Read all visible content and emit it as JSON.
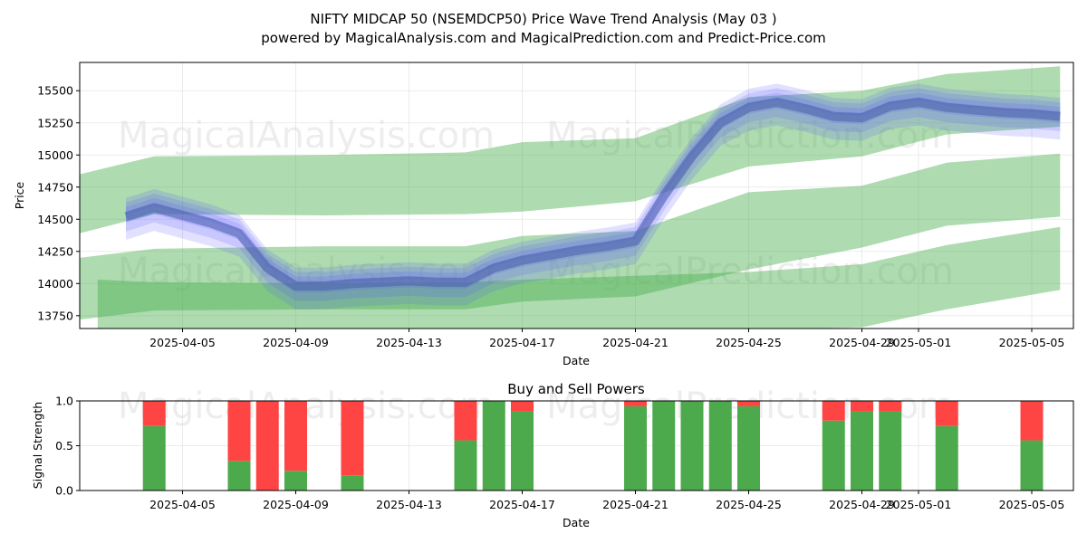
{
  "title_line1": "NIFTY MIDCAP 50 (NSEMDCP50) Price Wave Trend Analysis (May 03 )",
  "title_line2": "powered by MagicalAnalysis.com and MagicalPrediction.com and Predict-Price.com",
  "watermarks": [
    "MagicalAnalysis.com",
    "MagicalPrediction.com"
  ],
  "colors": {
    "band_green": "#4caf50",
    "wave_blue": "#5a5aff",
    "buy_green": "#4caa4c",
    "sell_red": "#ff4444"
  },
  "chart_data": [
    {
      "type": "area",
      "title": "",
      "xlabel": "Date",
      "ylabel": "Price",
      "ylim": [
        13650,
        15720
      ],
      "yticks": [
        13750,
        14000,
        14250,
        14500,
        14750,
        15000,
        15250,
        15500
      ],
      "xticks": [
        "2025-04-05",
        "2025-04-09",
        "2025-04-13",
        "2025-04-17",
        "2025-04-21",
        "2025-04-25",
        "2025-04-29",
        "2025-05-01",
        "2025-05-05"
      ],
      "grid": true,
      "green_bands": [
        {
          "x": [
            "2025-04-01",
            "2025-04-04",
            "2025-04-10",
            "2025-04-15",
            "2025-04-17",
            "2025-04-21",
            "2025-04-25",
            "2025-04-29",
            "2025-05-02",
            "2025-05-06"
          ],
          "upper": [
            14830,
            14990,
            15000,
            15020,
            15100,
            15130,
            15450,
            15500,
            15630,
            15690
          ],
          "lower": [
            14370,
            14540,
            14530,
            14540,
            14560,
            14640,
            14910,
            14990,
            15160,
            15220
          ]
        },
        {
          "x": [
            "2025-04-01",
            "2025-04-04",
            "2025-04-10",
            "2025-04-15",
            "2025-04-17",
            "2025-04-21",
            "2025-04-25",
            "2025-04-29",
            "2025-05-02",
            "2025-05-06"
          ],
          "upper": [
            14190,
            14270,
            14290,
            14290,
            14370,
            14410,
            14710,
            14760,
            14940,
            15010
          ],
          "lower": [
            13710,
            13790,
            13800,
            13800,
            13860,
            13900,
            14110,
            14280,
            14450,
            14520
          ]
        },
        {
          "x": [
            "2025-04-02",
            "2025-04-04",
            "2025-04-10",
            "2025-04-15",
            "2025-04-17",
            "2025-04-21",
            "2025-04-25",
            "2025-04-29",
            "2025-05-02",
            "2025-05-06"
          ],
          "upper": [
            14030,
            14010,
            14000,
            14010,
            14030,
            14060,
            14090,
            14150,
            14300,
            14440
          ],
          "lower": [
            13640,
            13640,
            13640,
            13640,
            13640,
            13640,
            13640,
            13660,
            13800,
            13950
          ]
        }
      ],
      "blue_waves": {
        "x": [
          "2025-04-03",
          "2025-04-04",
          "2025-04-05",
          "2025-04-06",
          "2025-04-07",
          "2025-04-08",
          "2025-04-09",
          "2025-04-10",
          "2025-04-11",
          "2025-04-12",
          "2025-04-13",
          "2025-04-14",
          "2025-04-15",
          "2025-04-16",
          "2025-04-17",
          "2025-04-18",
          "2025-04-19",
          "2025-04-20",
          "2025-04-21",
          "2025-04-22",
          "2025-04-23",
          "2025-04-24",
          "2025-04-25",
          "2025-04-26",
          "2025-04-27",
          "2025-04-28",
          "2025-04-29",
          "2025-04-30",
          "2025-05-01",
          "2025-05-02",
          "2025-05-03",
          "2025-05-04",
          "2025-05-05",
          "2025-05-06"
        ],
        "center": [
          14520,
          14590,
          14530,
          14470,
          14390,
          14120,
          13980,
          13980,
          14000,
          14010,
          14020,
          14010,
          14010,
          14120,
          14180,
          14220,
          14260,
          14290,
          14330,
          14680,
          14990,
          15250,
          15370,
          15410,
          15360,
          15300,
          15290,
          15380,
          15410,
          15370,
          15350,
          15330,
          15320,
          15300
        ],
        "half_width": 110,
        "shifts": [
          -70,
          -20,
          30,
          80
        ]
      }
    },
    {
      "type": "bar",
      "title": "Buy and Sell Powers",
      "xlabel": "Date",
      "ylabel": "Signal Strength",
      "ylim": [
        0,
        1
      ],
      "yticks": [
        "0.0",
        "0.5",
        "1.0"
      ],
      "xticks": [
        "2025-04-05",
        "2025-04-09",
        "2025-04-13",
        "2025-04-17",
        "2025-04-21",
        "2025-04-25",
        "2025-04-29",
        "2025-05-01",
        "2025-05-05"
      ],
      "grid": true,
      "series": [
        {
          "name": "Buy",
          "values": [
            0.72,
            0.33,
            0.0,
            0.22,
            0.17,
            0.56,
            1.0,
            0.88,
            0.94,
            1.0,
            1.0,
            1.0,
            0.94,
            0.78,
            0.88,
            0.88,
            0.72,
            0.56
          ]
        },
        {
          "name": "Sell",
          "values": [
            0.28,
            0.67,
            1.0,
            0.78,
            0.83,
            0.44,
            0.0,
            0.12,
            0.06,
            0.0,
            0.0,
            0.0,
            0.06,
            0.22,
            0.12,
            0.12,
            0.28,
            0.44
          ]
        }
      ],
      "categories": [
        "2025-04-04",
        "2025-04-07",
        "2025-04-08",
        "2025-04-09",
        "2025-04-11",
        "2025-04-15",
        "2025-04-16",
        "2025-04-17",
        "2025-04-21",
        "2025-04-22",
        "2025-04-23",
        "2025-04-24",
        "2025-04-25",
        "2025-04-28",
        "2025-04-29",
        "2025-04-30",
        "2025-05-02",
        "2025-05-05"
      ]
    }
  ]
}
